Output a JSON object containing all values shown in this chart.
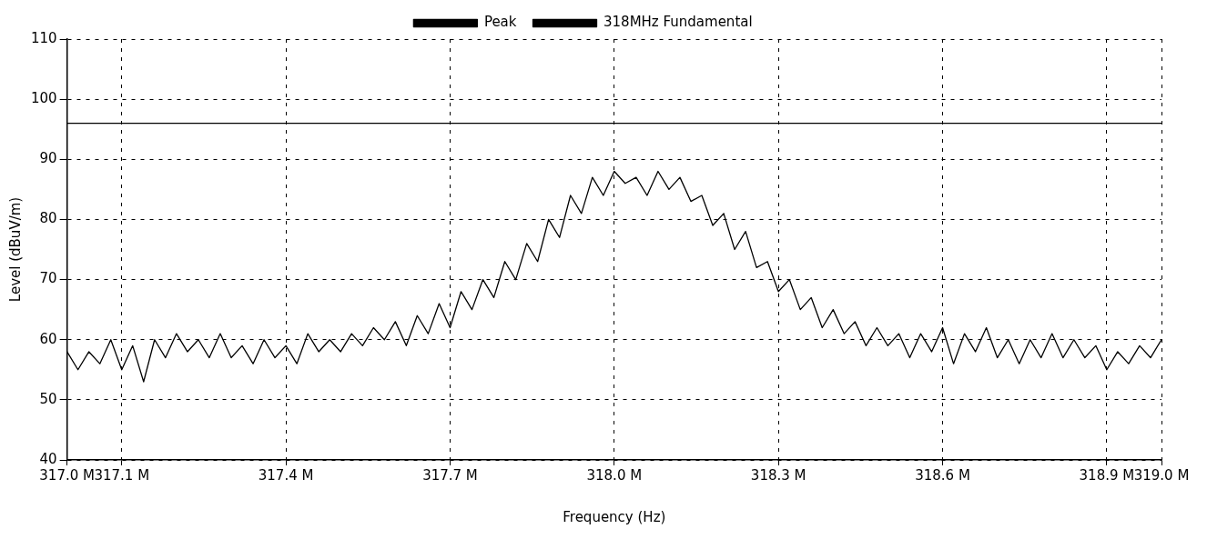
{
  "chart_data": {
    "type": "line",
    "xlabel": "Frequency (Hz)",
    "ylabel": "Level (dBuV/m)",
    "xlim": [
      317.0,
      319.0
    ],
    "xticks": [
      {
        "value": 317.0,
        "label": "317.0 M"
      },
      {
        "value": 317.1,
        "label": "317.1 M"
      },
      {
        "value": 317.4,
        "label": "317.4 M"
      },
      {
        "value": 317.7,
        "label": "317.7 M"
      },
      {
        "value": 318.0,
        "label": "318.0 M"
      },
      {
        "value": 318.3,
        "label": "318.3 M"
      },
      {
        "value": 318.6,
        "label": "318.6 M"
      },
      {
        "value": 318.9,
        "label": "318.9 M"
      },
      {
        "value": 319.0,
        "label": "319.0 M"
      }
    ],
    "ylim": [
      40,
      110
    ],
    "yticks": [
      40,
      50,
      60,
      70,
      80,
      90,
      100,
      110
    ],
    "grid": true,
    "legend": "top",
    "marker": "none",
    "line_style": "solid",
    "series": [
      {
        "name": "Peak",
        "color": "#000000",
        "x": [
          317.0,
          317.02,
          317.04,
          317.06,
          317.08,
          317.1,
          317.12,
          317.14,
          317.16,
          317.18,
          317.2,
          317.22,
          317.24,
          317.26,
          317.28,
          317.3,
          317.32,
          317.34,
          317.36,
          317.38,
          317.4,
          317.42,
          317.44,
          317.46,
          317.48,
          317.5,
          317.52,
          317.54,
          317.56,
          317.58,
          317.6,
          317.62,
          317.64,
          317.66,
          317.68,
          317.7,
          317.72,
          317.74,
          317.76,
          317.78,
          317.8,
          317.82,
          317.84,
          317.86,
          317.88,
          317.9,
          317.92,
          317.94,
          317.96,
          317.98,
          318.0,
          318.02,
          318.04,
          318.06,
          318.08,
          318.1,
          318.12,
          318.14,
          318.16,
          318.18,
          318.2,
          318.22,
          318.24,
          318.26,
          318.28,
          318.3,
          318.32,
          318.34,
          318.36,
          318.38,
          318.4,
          318.42,
          318.44,
          318.46,
          318.48,
          318.5,
          318.52,
          318.54,
          318.56,
          318.58,
          318.6,
          318.62,
          318.64,
          318.66,
          318.68,
          318.7,
          318.72,
          318.74,
          318.76,
          318.78,
          318.8,
          318.82,
          318.84,
          318.86,
          318.88,
          318.9,
          318.92,
          318.94,
          318.96,
          318.98,
          319.0
        ],
        "values": [
          58,
          55,
          58,
          56,
          60,
          55,
          59,
          53,
          60,
          57,
          61,
          58,
          60,
          57,
          61,
          57,
          59,
          56,
          60,
          57,
          59,
          56,
          61,
          58,
          60,
          58,
          61,
          59,
          62,
          60,
          63,
          59,
          64,
          61,
          66,
          62,
          68,
          65,
          70,
          67,
          73,
          70,
          76,
          73,
          80,
          77,
          84,
          81,
          87,
          84,
          88,
          86,
          87,
          84,
          88,
          85,
          87,
          83,
          84,
          79,
          81,
          75,
          78,
          72,
          73,
          68,
          70,
          65,
          67,
          62,
          65,
          61,
          63,
          59,
          62,
          59,
          61,
          57,
          61,
          58,
          62,
          56,
          61,
          58,
          62,
          57,
          60,
          56,
          60,
          57,
          61,
          57,
          60,
          57,
          59,
          55,
          58,
          56,
          59,
          57,
          60
        ]
      },
      {
        "name": "318MHz Fundamental",
        "color": "#000000",
        "x": [
          317.0,
          319.0
        ],
        "values": [
          96,
          96
        ]
      }
    ]
  }
}
